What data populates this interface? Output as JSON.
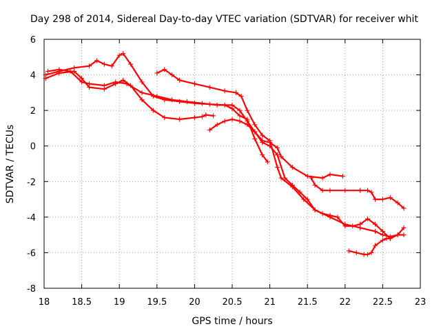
{
  "chart_data": {
    "type": "scatter",
    "title": "Day 298 of 2014, Sidereal Day-to-day VTEC variation (SDTVAR) for receiver whit",
    "xlabel": "GPS time / hours",
    "ylabel": "SDTVAR / TECUs",
    "xlim": [
      18,
      23
    ],
    "ylim": [
      -8,
      6
    ],
    "xticks": [
      "18",
      "18.5",
      "19",
      "19.5",
      "20",
      "20.5",
      "21",
      "21.5",
      "22",
      "22.5",
      "23"
    ],
    "yticks": [
      "-8",
      "-6",
      "-4",
      "-2",
      "0",
      "2",
      "4",
      "6"
    ],
    "grid": true,
    "marker": "+",
    "color": "#ff0000",
    "series": [
      {
        "name": "track-1",
        "x": [
          18.02,
          18.2,
          18.4,
          18.6,
          18.7,
          18.8,
          18.9,
          19.0,
          19.05,
          19.15,
          19.3,
          19.45,
          19.6,
          19.8,
          20.0,
          20.2,
          20.4,
          20.5,
          20.6,
          20.7,
          20.8,
          20.9,
          20.97
        ],
        "y": [
          4.0,
          4.2,
          4.4,
          4.5,
          4.8,
          4.6,
          4.5,
          5.1,
          5.2,
          4.6,
          3.6,
          2.8,
          2.6,
          2.5,
          2.4,
          2.35,
          2.3,
          2.1,
          1.7,
          1.5,
          0.4,
          -0.5,
          -0.9
        ]
      },
      {
        "name": "track-2",
        "x": [
          18.02,
          18.2,
          18.4,
          18.5,
          18.6,
          18.8,
          18.95,
          19.05,
          19.15,
          19.3,
          19.45,
          19.6,
          19.8,
          20.0,
          20.1,
          20.15,
          20.25
        ],
        "y": [
          3.8,
          4.1,
          4.2,
          3.8,
          3.3,
          3.2,
          3.5,
          3.7,
          3.4,
          2.6,
          2.0,
          1.6,
          1.5,
          1.6,
          1.65,
          1.75,
          1.7
        ]
      },
      {
        "name": "track-3",
        "x": [
          18.05,
          18.2,
          18.35,
          18.5,
          18.6,
          18.8,
          18.95,
          19.1,
          19.3,
          19.5,
          19.7,
          19.9,
          20.1,
          20.3,
          20.5,
          20.6,
          20.7,
          20.8,
          20.9,
          21.0,
          21.1,
          21.15,
          21.3,
          21.5,
          21.7,
          21.8,
          21.97
        ],
        "y": [
          4.2,
          4.3,
          4.2,
          3.6,
          3.5,
          3.4,
          3.6,
          3.5,
          3.0,
          2.8,
          2.6,
          2.5,
          2.4,
          2.3,
          2.3,
          2.0,
          1.4,
          0.8,
          0.3,
          0.2,
          -0.1,
          -0.6,
          -1.2,
          -1.7,
          -1.8,
          -1.6,
          -1.7
        ]
      },
      {
        "name": "track-4",
        "x": [
          19.5,
          19.6,
          19.7,
          19.8,
          20.0,
          20.2,
          20.4,
          20.55,
          20.62,
          20.7,
          20.8,
          20.9,
          21.0,
          21.1,
          21.15,
          21.3,
          21.45,
          21.6,
          21.8,
          22.0,
          22.2,
          22.4,
          22.5,
          22.6,
          22.7,
          22.78
        ],
        "y": [
          4.1,
          4.3,
          4.0,
          3.7,
          3.5,
          3.3,
          3.1,
          3.0,
          2.8,
          2.0,
          1.2,
          0.6,
          0.3,
          -1.2,
          -1.8,
          -2.3,
          -3.0,
          -3.6,
          -4.0,
          -4.4,
          -4.6,
          -4.8,
          -5.0,
          -5.1,
          -5.0,
          -5.0
        ]
      },
      {
        "name": "track-5",
        "x": [
          20.2,
          20.3,
          20.4,
          20.5,
          20.6,
          20.7,
          20.8,
          20.9,
          21.0,
          21.1,
          21.2,
          21.3,
          21.4,
          21.5,
          21.6,
          21.7,
          21.8,
          21.9,
          22.0,
          22.1,
          22.2,
          22.3,
          22.4,
          22.5,
          22.6,
          22.7,
          22.78
        ],
        "y": [
          0.9,
          1.2,
          1.4,
          1.5,
          1.4,
          1.2,
          0.8,
          0.2,
          0.0,
          -0.5,
          -1.8,
          -2.2,
          -2.6,
          -3.0,
          -3.6,
          -3.8,
          -3.9,
          -4.0,
          -4.5,
          -4.5,
          -4.4,
          -4.1,
          -4.4,
          -4.8,
          -5.2,
          -5.0,
          -4.6
        ]
      },
      {
        "name": "track-6",
        "x": [
          21.55,
          21.6,
          21.7,
          21.8,
          22.0,
          22.2,
          22.3,
          22.35,
          22.4,
          22.5,
          22.6,
          22.7,
          22.78
        ],
        "y": [
          -1.8,
          -2.2,
          -2.5,
          -2.5,
          -2.5,
          -2.5,
          -2.5,
          -2.6,
          -3.0,
          -3.0,
          -2.9,
          -3.2,
          -3.5
        ]
      },
      {
        "name": "track-7",
        "x": [
          22.05,
          22.15,
          22.25,
          22.3,
          22.35,
          22.4,
          22.5,
          22.55,
          22.6
        ],
        "y": [
          -5.9,
          -6.0,
          -6.1,
          -6.1,
          -6.0,
          -5.6,
          -5.3,
          -5.2,
          -5.2
        ]
      }
    ]
  }
}
